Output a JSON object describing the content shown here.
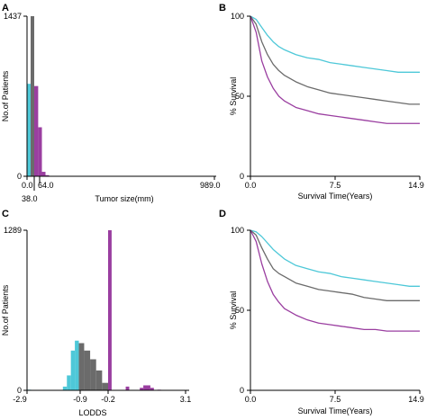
{
  "chart_data": [
    {
      "panel": "A",
      "type": "bar",
      "xlabel": "Tumor size(mm)",
      "ylabel": "No.of Patients",
      "x_tick_labels": [
        "0.0",
        "38.0",
        "64.0",
        "989.0"
      ],
      "y_tick_labels": [
        "0",
        "1437"
      ],
      "ylim": [
        0,
        1437
      ],
      "xlim": [
        0,
        989
      ],
      "bars": [
        {
          "x0": 0,
          "x1": 19,
          "value": 830,
          "group": "low"
        },
        {
          "x0": 19,
          "x1": 38,
          "value": 1437,
          "group": "mid"
        },
        {
          "x0": 38,
          "x1": 57,
          "value": 810,
          "group": "high"
        },
        {
          "x0": 57,
          "x1": 76,
          "value": 440,
          "group": "high"
        },
        {
          "x0": 76,
          "x1": 95,
          "value": 40,
          "group": "high"
        },
        {
          "x0": 95,
          "x1": 114,
          "value": 10,
          "group": "high"
        }
      ]
    },
    {
      "panel": "B",
      "type": "line",
      "xlabel": "Survival Time(Years)",
      "ylabel": "% Survival",
      "x_tick_labels": [
        "0.0",
        "7.5",
        "14.9"
      ],
      "y_tick_labels": [
        "0",
        "50",
        "100"
      ],
      "xlim": [
        0,
        14.9
      ],
      "ylim": [
        0,
        100
      ],
      "series": [
        {
          "group": "low",
          "x": [
            0,
            0.5,
            1,
            1.5,
            2,
            2.5,
            3,
            4,
            5,
            6,
            7,
            8,
            9,
            10,
            11,
            12,
            13,
            14,
            14.9
          ],
          "y": [
            100,
            98,
            93,
            88,
            84,
            81,
            79,
            76,
            74,
            73,
            71,
            70,
            69,
            68,
            67,
            66,
            65,
            65,
            65
          ]
        },
        {
          "group": "mid",
          "x": [
            0,
            0.5,
            1,
            1.5,
            2,
            2.5,
            3,
            4,
            5,
            6,
            7,
            8,
            9,
            10,
            11,
            12,
            13,
            14,
            14.9
          ],
          "y": [
            100,
            95,
            84,
            76,
            70,
            66,
            63,
            59,
            56,
            54,
            52,
            51,
            50,
            49,
            48,
            47,
            46,
            45,
            45
          ]
        },
        {
          "group": "high",
          "x": [
            0,
            0.5,
            1,
            1.5,
            2,
            2.5,
            3,
            4,
            5,
            6,
            7,
            8,
            9,
            10,
            11,
            12,
            13,
            14,
            14.9
          ],
          "y": [
            100,
            90,
            72,
            62,
            55,
            50,
            47,
            43,
            41,
            39,
            38,
            37,
            36,
            35,
            34,
            33,
            33,
            33,
            33
          ]
        }
      ]
    },
    {
      "panel": "C",
      "type": "bar",
      "xlabel": "LODDS",
      "ylabel": "No.of Patients",
      "x_tick_labels": [
        "-2.9",
        "-0.9",
        "-0.2",
        "3.1"
      ],
      "y_tick_labels": [
        "0",
        "1289"
      ],
      "xlim": [
        -2.9,
        3.1
      ],
      "ylim": [
        0,
        1289
      ],
      "bars": [
        {
          "x0": -2.9,
          "x1": -2.75,
          "value": 5,
          "group": "low"
        },
        {
          "x0": -1.55,
          "x1": -1.4,
          "value": 30,
          "group": "low"
        },
        {
          "x0": -1.4,
          "x1": -1.25,
          "value": 120,
          "group": "low"
        },
        {
          "x0": -1.25,
          "x1": -1.1,
          "value": 320,
          "group": "low"
        },
        {
          "x0": -1.1,
          "x1": -0.95,
          "value": 400,
          "group": "low"
        },
        {
          "x0": -0.95,
          "x1": -0.8,
          "value": 380,
          "group": "mid"
        },
        {
          "x0": -0.8,
          "x1": -0.65,
          "value": 320,
          "group": "mid"
        },
        {
          "x0": -0.65,
          "x1": -0.5,
          "value": 250,
          "group": "mid"
        },
        {
          "x0": -0.5,
          "x1": -0.35,
          "value": 160,
          "group": "mid"
        },
        {
          "x0": -0.35,
          "x1": -0.2,
          "value": 60,
          "group": "mid"
        },
        {
          "x0": -0.2,
          "x1": -0.05,
          "value": 1289,
          "group": "high"
        },
        {
          "x0": 0.55,
          "x1": 0.7,
          "value": 30,
          "group": "high"
        },
        {
          "x0": 1.15,
          "x1": 1.3,
          "value": 20,
          "group": "high"
        },
        {
          "x0": 1.3,
          "x1": 1.45,
          "value": 40,
          "group": "high"
        },
        {
          "x0": 1.45,
          "x1": 1.6,
          "value": 40,
          "group": "high"
        },
        {
          "x0": 1.6,
          "x1": 1.75,
          "value": 20,
          "group": "high"
        },
        {
          "x0": 1.9,
          "x1": 2.05,
          "value": 5,
          "group": "high"
        }
      ]
    },
    {
      "panel": "D",
      "type": "line",
      "xlabel": "Survival Time(Years)",
      "ylabel": "% Survival",
      "x_tick_labels": [
        "0.0",
        "7.5",
        "14.9"
      ],
      "y_tick_labels": [
        "0",
        "50",
        "100"
      ],
      "xlim": [
        0,
        14.9
      ],
      "ylim": [
        0,
        100
      ],
      "series": [
        {
          "group": "low",
          "x": [
            0,
            0.5,
            1,
            1.5,
            2,
            2.5,
            3,
            4,
            5,
            6,
            7,
            8,
            9,
            10,
            11,
            12,
            13,
            14,
            14.9
          ],
          "y": [
            100,
            99,
            96,
            92,
            88,
            85,
            82,
            78,
            76,
            74,
            73,
            71,
            70,
            69,
            68,
            67,
            66,
            65,
            65
          ]
        },
        {
          "group": "mid",
          "x": [
            0,
            0.5,
            1,
            1.5,
            2,
            2.5,
            3,
            4,
            5,
            6,
            7,
            8,
            9,
            10,
            11,
            12,
            13,
            14,
            14.9
          ],
          "y": [
            100,
            97,
            89,
            82,
            76,
            73,
            71,
            67,
            65,
            63,
            62,
            61,
            60,
            58,
            57,
            56,
            56,
            56,
            56
          ]
        },
        {
          "group": "high",
          "x": [
            0,
            0.5,
            1,
            1.5,
            2,
            2.5,
            3,
            4,
            5,
            6,
            7,
            8,
            9,
            10,
            11,
            12,
            13,
            14,
            14.9
          ],
          "y": [
            100,
            93,
            79,
            68,
            60,
            55,
            51,
            47,
            44,
            42,
            41,
            40,
            39,
            38,
            38,
            37,
            37,
            37,
            37
          ]
        }
      ]
    }
  ],
  "colors": {
    "low": "#4ec8d8",
    "mid": "#6b6b6b",
    "high": "#9a3ea0",
    "axis": "#000000"
  }
}
